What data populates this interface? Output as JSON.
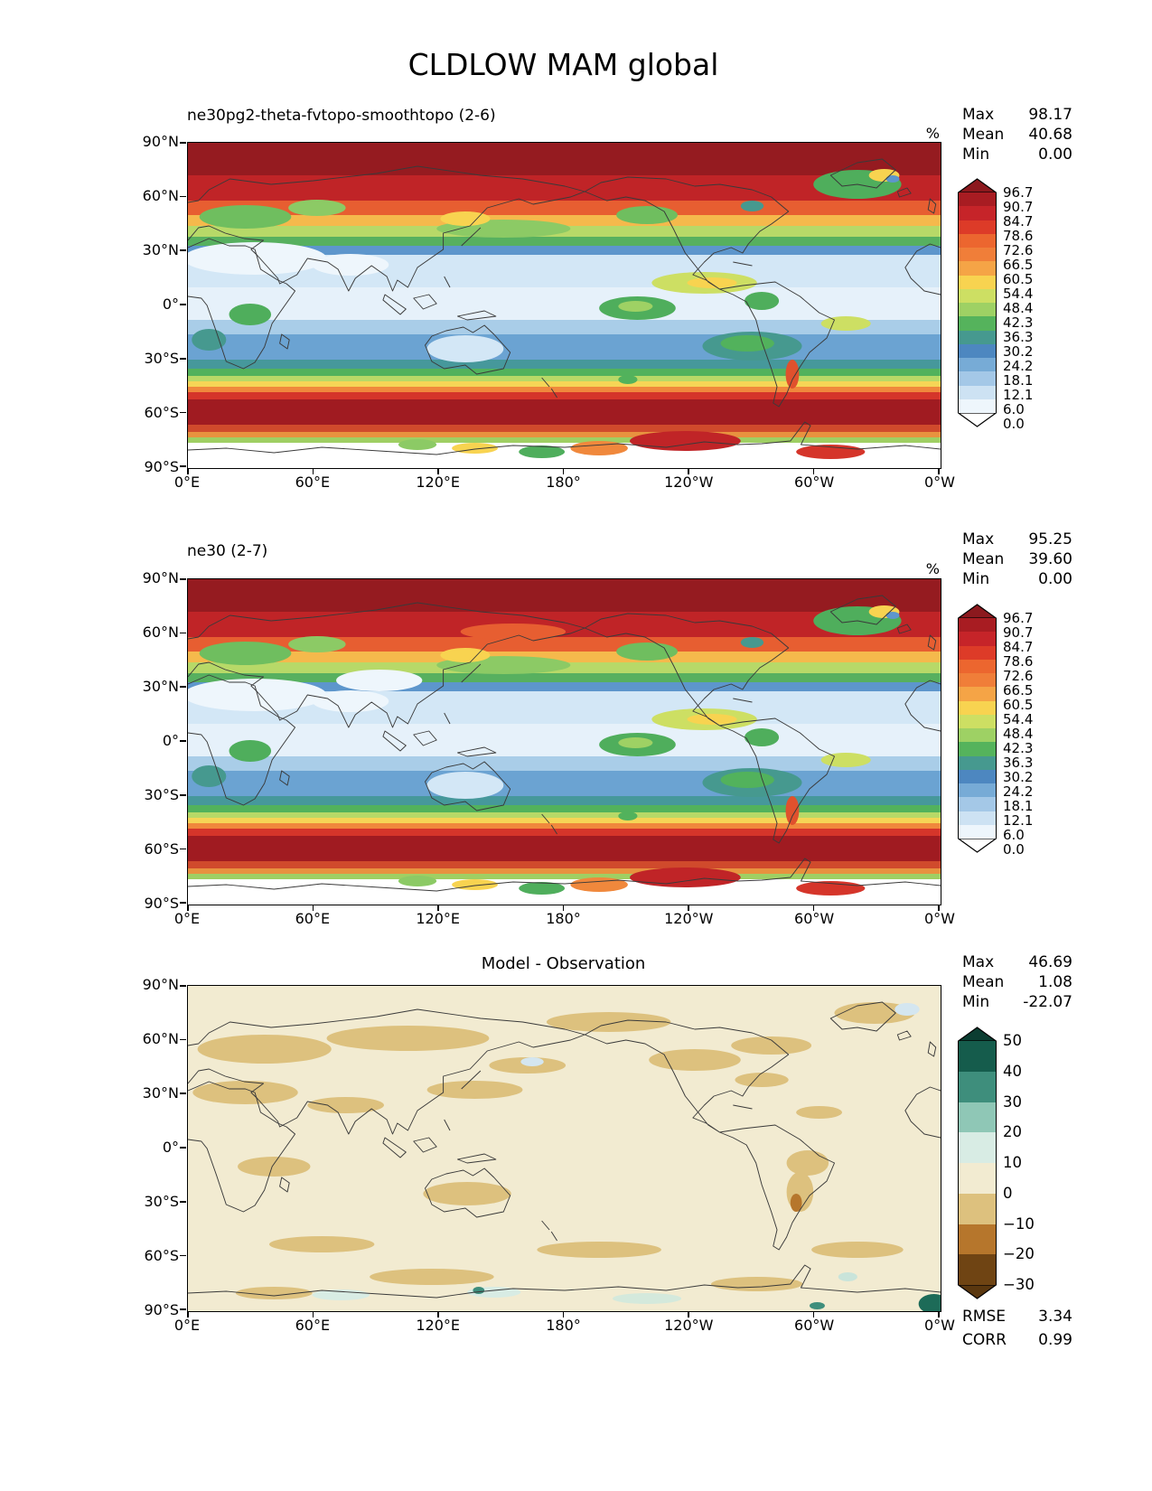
{
  "title": "CLDLOW MAM global",
  "axis": {
    "x_ticks": [
      "0°E",
      "60°E",
      "120°E",
      "180°",
      "120°W",
      "60°W",
      "0°W"
    ],
    "y_ticks": [
      "90°N",
      "60°N",
      "30°N",
      "0°",
      "30°S",
      "60°S",
      "90°S"
    ]
  },
  "panel1": {
    "title": "ne30pg2-theta-fvtopo-smoothtopo (2-6)",
    "units": "%",
    "stats": {
      "max_label": "Max",
      "max": "98.17",
      "mean_label": "Mean",
      "mean": "40.68",
      "min_label": "Min",
      "min": "0.00"
    }
  },
  "panel2": {
    "title": "ne30 (2-7)",
    "units": "%",
    "stats": {
      "max_label": "Max",
      "max": "95.25",
      "mean_label": "Mean",
      "mean": "39.60",
      "min_label": "Min",
      "min": "0.00"
    }
  },
  "panel3": {
    "title": "Model - Observation",
    "stats": {
      "max_label": "Max",
      "max": "46.69",
      "mean_label": "Mean",
      "mean": "1.08",
      "min_label": "Min",
      "min": "-22.07"
    },
    "metrics": {
      "rmse_label": "RMSE",
      "rmse": "3.34",
      "corr_label": "CORR",
      "corr": "0.99"
    }
  },
  "colorbar_main": {
    "labels": [
      "96.7",
      "90.7",
      "84.7",
      "78.6",
      "72.6",
      "66.5",
      "60.5",
      "54.4",
      "48.4",
      "42.3",
      "36.3",
      "30.2",
      "24.2",
      "18.1",
      "12.1",
      "6.0",
      "0.0"
    ],
    "colors": [
      "#8c191e",
      "#a81c22",
      "#c62429",
      "#dd3b28",
      "#ec662f",
      "#f07e39",
      "#f5a446",
      "#f8d350",
      "#cddf63",
      "#9ed164",
      "#55b35c",
      "#46998f",
      "#4d87c0",
      "#77abd6",
      "#a4c8e7",
      "#cde2f3",
      "#eef6fc",
      "#ffffff"
    ]
  },
  "colorbar_diff": {
    "labels": [
      "50",
      "40",
      "30",
      "20",
      "10",
      "0",
      "−10",
      "−20",
      "−30"
    ],
    "colors": [
      "#0b3d31",
      "#155c4c",
      "#3e8e7c",
      "#8fc7b6",
      "#d8ece4",
      "#f2ebd1",
      "#ddc17e",
      "#b6762c",
      "#6f4413",
      "#5a370f"
    ]
  },
  "chart_data": {
    "type": "heatmap",
    "subtype": "global_contour_maps",
    "variable": "CLDLOW",
    "season": "MAM",
    "region": "global",
    "units": "%",
    "lon_ticks": [
      "0°E",
      "60°E",
      "120°E",
      "180°",
      "120°W",
      "60°W",
      "0°W"
    ],
    "lat_ticks": [
      "90°N",
      "60°N",
      "30°N",
      "0°",
      "30°S",
      "60°S",
      "90°S"
    ],
    "panels": [
      {
        "title": "ne30pg2-theta-fvtopo-smoothtopo (2-6)",
        "units": "%",
        "stats": {
          "max": 98.17,
          "mean": 40.68,
          "min": 0.0
        },
        "contour_levels": [
          0.0,
          6.0,
          12.1,
          18.1,
          24.2,
          30.2,
          36.3,
          42.3,
          48.4,
          54.4,
          60.5,
          66.5,
          72.6,
          78.6,
          84.7,
          90.7,
          96.7
        ]
      },
      {
        "title": "ne30 (2-7)",
        "units": "%",
        "stats": {
          "max": 95.25,
          "mean": 39.6,
          "min": 0.0
        },
        "contour_levels": [
          0.0,
          6.0,
          12.1,
          18.1,
          24.2,
          30.2,
          36.3,
          42.3,
          48.4,
          54.4,
          60.5,
          66.5,
          72.6,
          78.6,
          84.7,
          90.7,
          96.7
        ]
      },
      {
        "title": "Model - Observation",
        "stats": {
          "max": 46.69,
          "mean": 1.08,
          "min": -22.07
        },
        "metrics": {
          "rmse": 3.34,
          "corr": 0.99
        },
        "contour_levels": [
          -30,
          -20,
          -10,
          0,
          10,
          20,
          30,
          40,
          50
        ]
      }
    ]
  }
}
